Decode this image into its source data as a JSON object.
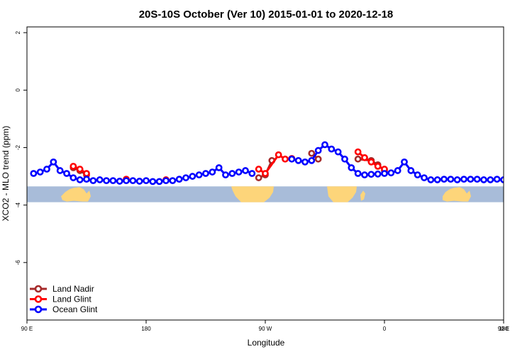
{
  "chart_data": {
    "type": "line",
    "title": "20S-10S October (Ver 10)   2015-01-01 to 2020-12-18",
    "xlabel": "Longitude",
    "ylabel": "XCO2 - MLO trend (ppm)",
    "xlim": [
      90,
      450
    ],
    "ylim": [
      -8,
      2.2
    ],
    "x_ticks": [
      {
        "value": 90,
        "label": "90 E"
      },
      {
        "value": 180,
        "label": "180"
      },
      {
        "value": 270,
        "label": "90 W"
      },
      {
        "value": 360,
        "label": "0"
      },
      {
        "value": 450,
        "label": "90 E"
      },
      {
        "value": 540,
        "label": "180"
      }
    ],
    "y_ticks": [
      {
        "value": 2,
        "label": "2"
      },
      {
        "value": 0,
        "label": "0"
      },
      {
        "value": -2,
        "label": "-2"
      },
      {
        "value": -4,
        "label": "-4"
      },
      {
        "value": -6,
        "label": "-6"
      }
    ],
    "map_strip": {
      "y_top": -3.35,
      "y_bottom": -3.9,
      "ocean_color": "#a8bcd9",
      "land_color": "#fdd57a"
    },
    "legend_position": "bottom-left",
    "series": [
      {
        "name": "Land Nadir",
        "color": "#a52a2a",
        "segments": [
          {
            "x": [
              125,
              130,
              135
            ],
            "y": [
              -2.7,
              -2.8,
              -2.95
            ]
          },
          {
            "x": [
              265,
              270,
              275
            ],
            "y": [
              -3.05,
              -2.95,
              -2.45
            ]
          },
          {
            "x": [
              305,
              310
            ],
            "y": [
              -2.2,
              -2.4
            ]
          },
          {
            "x": [
              340,
              350,
              355,
              360
            ],
            "y": [
              -2.4,
              -2.45,
              -2.6,
              -2.8
            ]
          },
          {
            "x": [
              485,
              490,
              495
            ],
            "y": [
              -2.7,
              -2.85,
              -2.95
            ]
          }
        ]
      },
      {
        "name": "Land Glint",
        "color": "#ff0000",
        "segments": [
          {
            "x": [
              125,
              130,
              135
            ],
            "y": [
              -2.65,
              -2.75,
              -2.9
            ]
          },
          {
            "x": [
              165
            ],
            "y": [
              -3.1
            ]
          },
          {
            "x": [
              195
            ],
            "y": [
              -3.12
            ]
          },
          {
            "x": [
              265,
              270,
              280,
              285,
              290
            ],
            "y": [
              -2.75,
              -2.9,
              -2.25,
              -2.4,
              -2.38
            ]
          },
          {
            "x": [
              340,
              345,
              350,
              355,
              360
            ],
            "y": [
              -2.15,
              -2.35,
              -2.5,
              -2.65,
              -2.75
            ]
          },
          {
            "x": [
              485,
              490,
              495
            ],
            "y": [
              -2.7,
              -2.8,
              -2.95
            ]
          }
        ]
      },
      {
        "name": "Ocean Glint",
        "color": "#0000ff",
        "segments": [
          {
            "x": [
              95,
              100,
              105,
              110,
              115,
              120,
              125,
              130,
              135,
              140,
              145,
              150,
              155,
              160,
              165,
              170,
              175,
              180,
              185,
              190,
              195,
              200,
              205,
              210,
              215,
              220,
              225,
              230,
              235,
              240,
              245,
              250,
              255,
              260
            ],
            "y": [
              -2.9,
              -2.85,
              -2.75,
              -2.5,
              -2.8,
              -2.9,
              -3.05,
              -3.12,
              -3.1,
              -3.15,
              -3.12,
              -3.15,
              -3.15,
              -3.17,
              -3.15,
              -3.15,
              -3.17,
              -3.15,
              -3.18,
              -3.18,
              -3.15,
              -3.15,
              -3.1,
              -3.05,
              -3.0,
              -2.95,
              -2.9,
              -2.85,
              -2.7,
              -2.95,
              -2.9,
              -2.85,
              -2.8,
              -2.9
            ]
          },
          {
            "x": [
              290,
              295,
              300,
              305,
              310,
              315,
              320,
              325,
              330,
              335,
              340,
              345,
              350,
              355,
              360,
              365,
              370,
              375,
              380,
              385,
              390,
              395,
              400,
              405,
              410,
              415,
              420,
              425,
              430,
              435,
              440,
              445,
              450
            ],
            "y": [
              -2.4,
              -2.45,
              -2.5,
              -2.45,
              -2.1,
              -1.9,
              -2.05,
              -2.15,
              -2.4,
              -2.7,
              -2.9,
              -2.95,
              -2.93,
              -2.92,
              -2.9,
              -2.88,
              -2.8,
              -2.5,
              -2.8,
              -2.95,
              -3.05,
              -3.12,
              -3.12,
              -3.1,
              -3.1,
              -3.12,
              -3.1,
              -3.1,
              -3.1,
              -3.12,
              -3.12,
              -3.1,
              -3.12
            ]
          }
        ]
      }
    ]
  }
}
